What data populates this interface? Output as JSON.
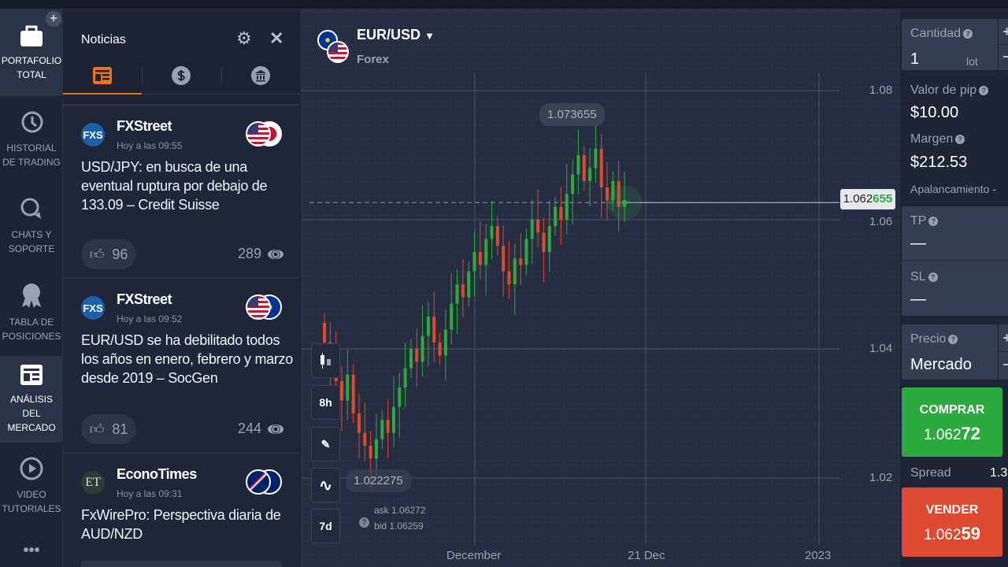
{
  "sidebar": {
    "items": [
      {
        "label": "PORTAFOLIO TOTAL",
        "icon": "briefcase-icon",
        "active": true
      },
      {
        "label": "HISTORIAL DE TRADING",
        "icon": "history-icon"
      },
      {
        "label": "CHATS Y SOPORTE",
        "icon": "chat-icon"
      },
      {
        "label": "TABLA DE POSICIONES",
        "icon": "medal-icon"
      },
      {
        "label": "ANÁLISIS DEL MERCADO",
        "icon": "news-icon",
        "active": true
      },
      {
        "label": "VIDEO TUTORIALES",
        "icon": "play-icon"
      }
    ],
    "more": "•••",
    "add": "+"
  },
  "news": {
    "title": "Noticias",
    "tabs": [
      "news-icon",
      "dollar-icon",
      "bank-icon"
    ],
    "cards": [
      {
        "source": "FXStreet",
        "logo": "FXS",
        "time": "Hoy a las 09:55",
        "headline": "USD/JPY: en busca de una eventual ruptura por debajo de 133.09 – Credit Suisse",
        "likes": "96",
        "views": "289",
        "flags": [
          "us",
          "jp"
        ]
      },
      {
        "source": "FXStreet",
        "logo": "FXS",
        "time": "Hoy a las 09:52",
        "headline": "EUR/USD se ha debilitado todos los años en enero, febrero y marzo desde 2019 – SocGen",
        "likes": "81",
        "views": "244",
        "flags": [
          "us",
          "eu"
        ]
      },
      {
        "source": "EconoTimes",
        "logo": "ET",
        "time": "Hoy a las 09:31",
        "headline": "FxWirePro: Perspectiva diaria de AUD/NZD",
        "flags": [
          "au",
          "nz"
        ]
      }
    ]
  },
  "chart": {
    "pair": "EUR/USD",
    "market": "Forex",
    "current_price_prefix": "1.062",
    "current_price_suffix": "655",
    "high_label": "1.073655",
    "low_label": "1.022275",
    "ask": "ask 1.06272",
    "bid": "bid 1.06259",
    "tools": {
      "timeframe": "8h",
      "period": "7d"
    },
    "colors": {
      "up": "#2bab3f",
      "down": "#de4a30"
    }
  },
  "chart_data": {
    "type": "candlestick",
    "y_ticks": [
      "1.08",
      "1.06",
      "1.04",
      "1.02"
    ],
    "x_ticks": [
      "December",
      "21 Dec",
      "2023"
    ],
    "closes": [
      1.041,
      1.038,
      1.035,
      1.032,
      1.036,
      1.03,
      1.027,
      1.025,
      1.023,
      1.026,
      1.029,
      1.027,
      1.031,
      1.034,
      1.037,
      1.04,
      1.038,
      1.042,
      1.045,
      1.041,
      1.039,
      1.043,
      1.047,
      1.05,
      1.048,
      1.052,
      1.055,
      1.053,
      1.057,
      1.059,
      1.056,
      1.052,
      1.05,
      1.054,
      1.053,
      1.057,
      1.06,
      1.058,
      1.055,
      1.059,
      1.062,
      1.06,
      1.064,
      1.067,
      1.07,
      1.066,
      1.068,
      1.071,
      1.065,
      1.063,
      1.066,
      1.062,
      1.0627
    ]
  },
  "trade": {
    "quantity_label": "Cantidad",
    "quantity": "1",
    "unit": "lot",
    "pip_label": "Valor de pip",
    "pip": "$10.00",
    "margin_label": "Margen",
    "margin": "$212.53",
    "leverage_label": "Apalancamiento",
    "leverage": "-",
    "tp_label": "TP",
    "tp": "—",
    "sl_label": "SL",
    "sl": "—",
    "price_label": "Precio",
    "price": "Mercado",
    "buy_label": "COMPRAR",
    "buy_prefix": "1.062",
    "buy_suffix": "72",
    "spread_label": "Spread",
    "spread": "1.3",
    "sell_label": "VENDER",
    "sell_prefix": "1.062",
    "sell_suffix": "59"
  }
}
